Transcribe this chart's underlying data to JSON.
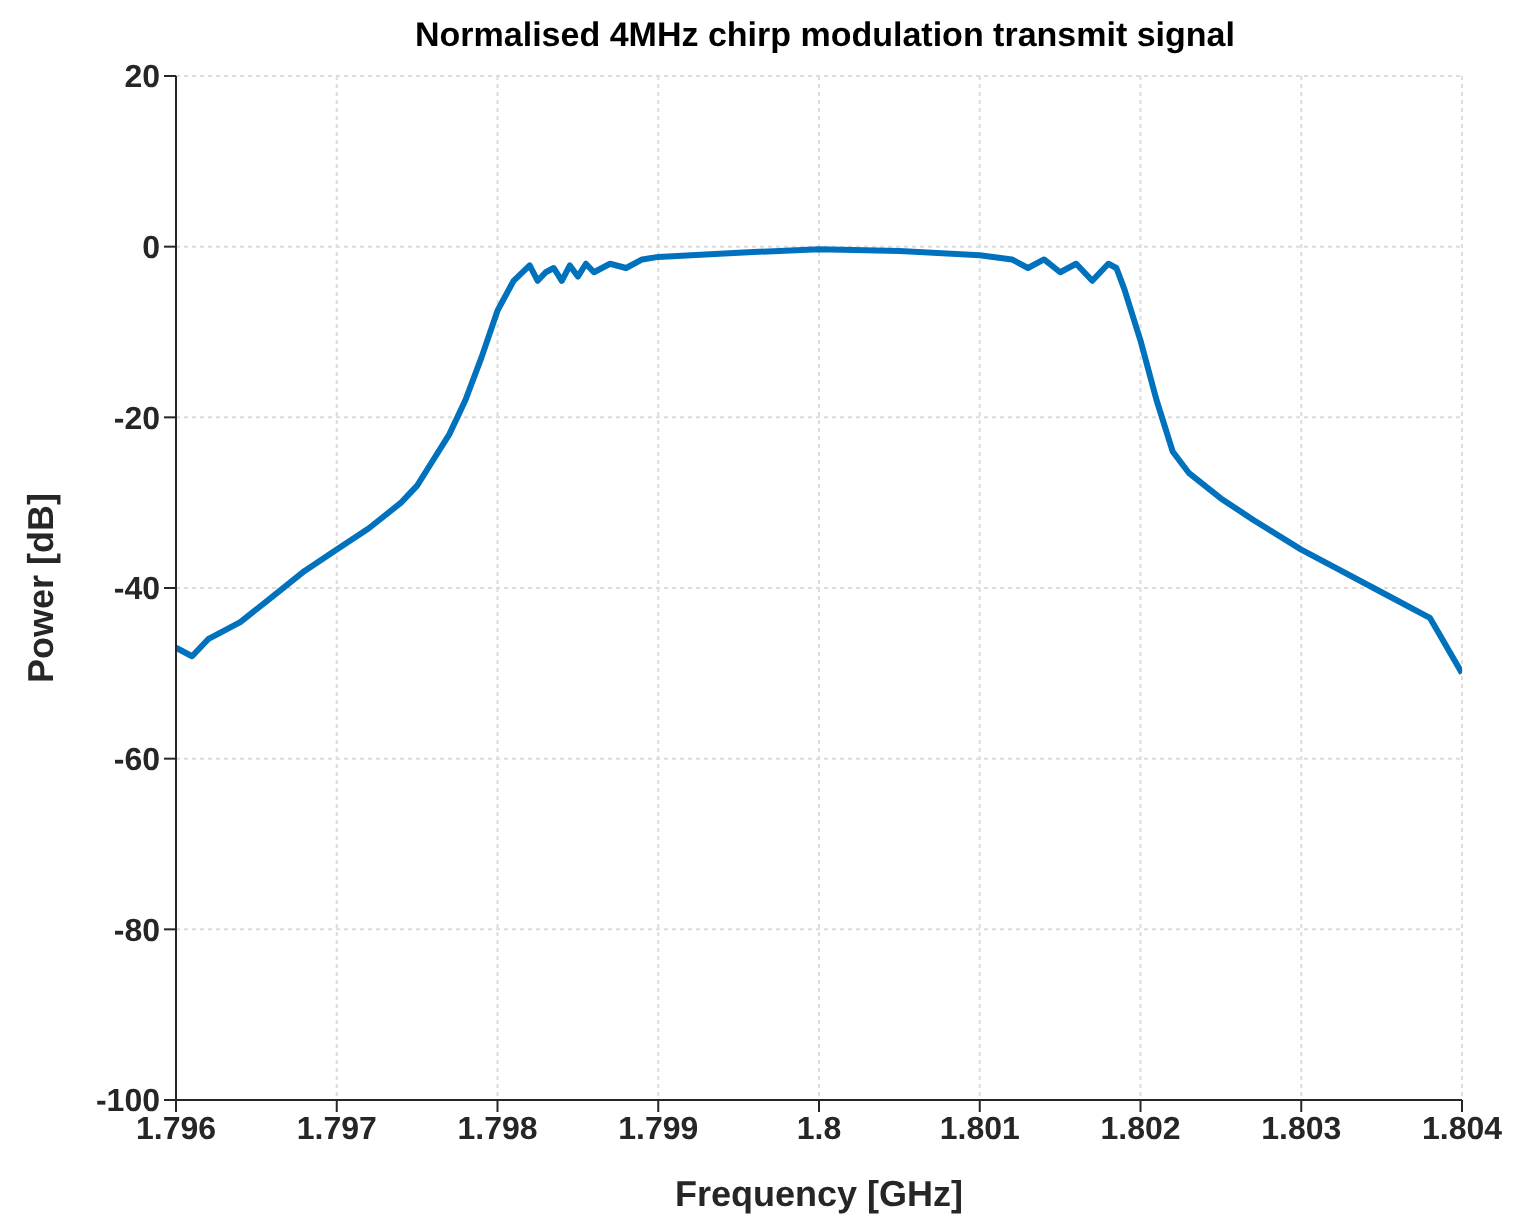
{
  "chart_data": {
    "type": "line",
    "title": "Normalised 4MHz chirp modulation transmit signal",
    "xlabel": "Frequency [GHz]",
    "ylabel": "Power [dB]",
    "xlim": [
      1.796,
      1.804
    ],
    "xticks": [
      1.796,
      1.797,
      1.798,
      1.799,
      1.8,
      1.801,
      1.802,
      1.803,
      1.804
    ],
    "ylim": [
      -100,
      20
    ],
    "yticks": [
      -100,
      -80,
      -60,
      -40,
      -20,
      0,
      20
    ],
    "grid": true,
    "marker": "none",
    "line_style": "solid",
    "series": [
      {
        "color": "#0072bd",
        "x": [
          1.796,
          1.7961,
          1.7962,
          1.7964,
          1.7966,
          1.7968,
          1.797,
          1.7972,
          1.7974,
          1.7975,
          1.7976,
          1.7977,
          1.7978,
          1.7979,
          1.798,
          1.7981,
          1.7982,
          1.79825,
          1.7983,
          1.79835,
          1.7984,
          1.79845,
          1.7985,
          1.79855,
          1.7986,
          1.7987,
          1.7988,
          1.7989,
          1.799,
          1.7995,
          1.8,
          1.8005,
          1.801,
          1.8012,
          1.8013,
          1.8014,
          1.8015,
          1.8016,
          1.8017,
          1.8018,
          1.80185,
          1.8019,
          1.802,
          1.8021,
          1.8022,
          1.8023,
          1.8025,
          1.8027,
          1.803,
          1.8032,
          1.8035,
          1.8038,
          1.804
        ],
        "values": [
          -47,
          -48,
          -46,
          -44,
          -41,
          -38,
          -35.5,
          -33,
          -30,
          -28,
          -25,
          -22,
          -18,
          -13,
          -7.5,
          -4,
          -2.2,
          -4,
          -3,
          -2.5,
          -4,
          -2.2,
          -3.5,
          -2,
          -3,
          -2,
          -2.5,
          -1.5,
          -1.2,
          -0.7,
          -0.3,
          -0.5,
          -1,
          -1.5,
          -2.5,
          -1.5,
          -3,
          -2,
          -4,
          -2,
          -2.5,
          -5,
          -11,
          -18,
          -24,
          -26.5,
          -29.5,
          -32,
          -35.5,
          -37.5,
          -40.5,
          -43.5,
          -50
        ]
      }
    ]
  }
}
